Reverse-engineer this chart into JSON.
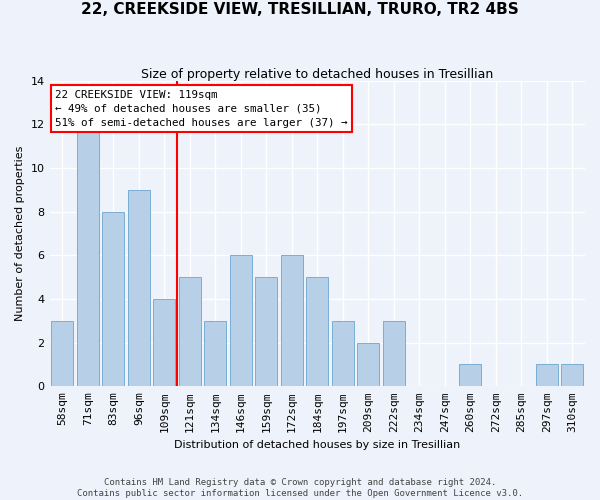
{
  "title": "22, CREEKSIDE VIEW, TRESILLIAN, TRURO, TR2 4BS",
  "subtitle": "Size of property relative to detached houses in Tresillian",
  "xlabel": "Distribution of detached houses by size in Tresillian",
  "ylabel": "Number of detached properties",
  "categories": [
    "58sqm",
    "71sqm",
    "83sqm",
    "96sqm",
    "109sqm",
    "121sqm",
    "134sqm",
    "146sqm",
    "159sqm",
    "172sqm",
    "184sqm",
    "197sqm",
    "209sqm",
    "222sqm",
    "234sqm",
    "247sqm",
    "260sqm",
    "272sqm",
    "285sqm",
    "297sqm",
    "310sqm"
  ],
  "values": [
    3,
    12,
    8,
    9,
    4,
    5,
    3,
    6,
    5,
    6,
    5,
    3,
    2,
    3,
    0,
    0,
    1,
    0,
    0,
    1,
    1
  ],
  "bar_color": "#b8cfe8",
  "bar_edgecolor": "#7aaed4",
  "highlight_label": "22 CREEKSIDE VIEW: 119sqm",
  "highlight_sublabel1": "← 49% of detached houses are smaller (35)",
  "highlight_sublabel2": "51% of semi-detached houses are larger (37) →",
  "annotation_box_edgecolor": "red",
  "vline_color": "red",
  "vline_index": 5,
  "ylim": [
    0,
    14
  ],
  "yticks": [
    0,
    2,
    4,
    6,
    8,
    10,
    12,
    14
  ],
  "footer1": "Contains HM Land Registry data © Crown copyright and database right 2024.",
  "footer2": "Contains public sector information licensed under the Open Government Licence v3.0.",
  "bg_color": "#eef2fa",
  "plot_bg_color": "#eef2fa",
  "title_fontsize": 11,
  "subtitle_fontsize": 9,
  "ylabel_fontsize": 8,
  "xlabel_fontsize": 8,
  "tick_fontsize": 8,
  "footer_fontsize": 6.5
}
